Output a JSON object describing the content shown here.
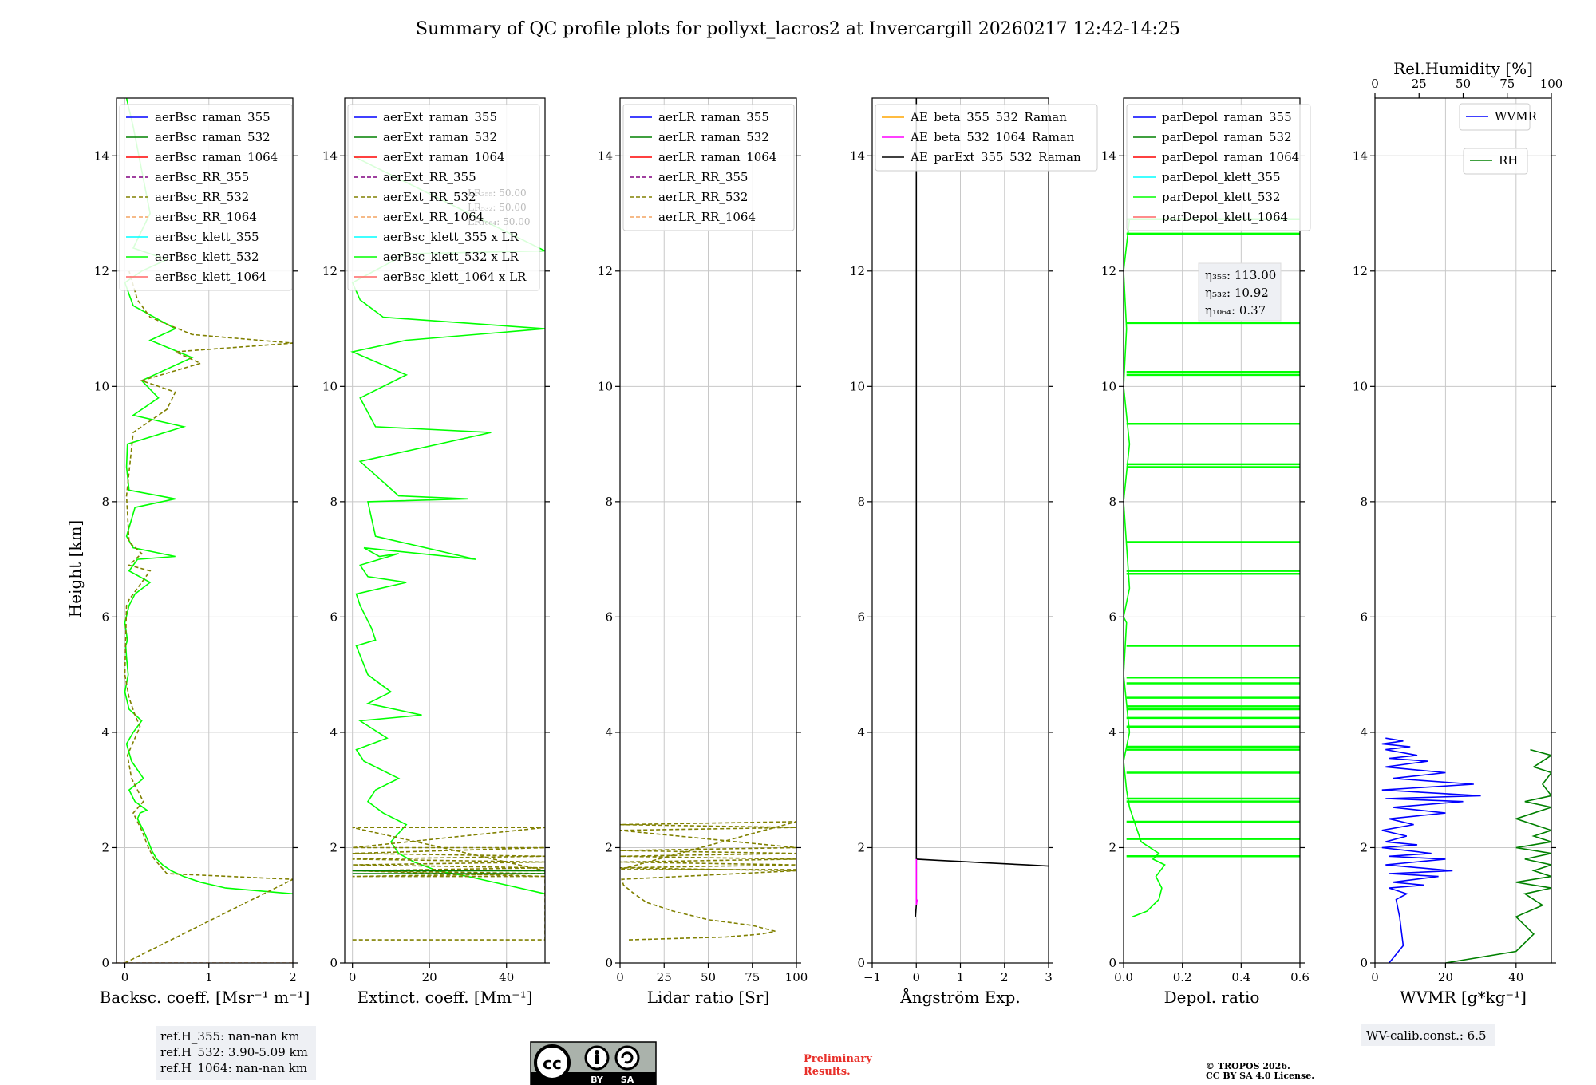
{
  "figure": {
    "title": "Summary of QC profile plots for pollyxt_lacros2 at Invercargill 20260217 12:42-14:25",
    "ylabel": "Height [km]",
    "ref_heights": [
      "ref.H_355: nan-nan km",
      "ref.H_532: 3.90-5.09 km",
      "ref.H_1064: nan-nan km"
    ],
    "wv_calib": "WV-calib.const.: 6.5",
    "preliminary": [
      "Preliminary",
      "Results."
    ],
    "copyright": [
      "© TROPOS 2026.",
      "CC BY SA 4.0 License."
    ],
    "license_badge": {
      "by": "BY",
      "sa": "SA",
      "cc": "cc"
    },
    "colors": {
      "raman355": "#0000ff",
      "raman532": "#008000",
      "raman1064": "#ff0000",
      "rr355": "#800080",
      "rr532": "#808000",
      "rr1064": "#f4a460",
      "klett355": "#00ffff",
      "klett532": "#00ff00",
      "klett1064": "#ff6666",
      "ae1": "#ffa500",
      "ae2": "#ff00ff",
      "ae3": "#000000",
      "prelim": "#e8302a"
    }
  },
  "chart_data": [
    {
      "type": "line",
      "name": "backscatter",
      "xlabel": "Backsc. coeff. [Msr⁻¹ m⁻¹]",
      "xlim": [
        -0.1,
        2
      ],
      "ylim": [
        0,
        15
      ],
      "xticks": [
        0,
        1,
        2
      ],
      "yticks": [
        0,
        2,
        4,
        6,
        8,
        10,
        12,
        14
      ],
      "legend": [
        "aerBsc_raman_355",
        "aerBsc_raman_532",
        "aerBsc_raman_1064",
        "aerBsc_RR_355",
        "aerBsc_RR_532",
        "aerBsc_RR_1064",
        "aerBsc_klett_355",
        "aerBsc_klett_532",
        "aerBsc_klett_1064"
      ],
      "series": [
        {
          "name": "aerBsc_klett_532",
          "color": "klett532",
          "x": [
            2.0,
            1.2,
            0.9,
            0.7,
            0.55,
            0.45,
            0.38,
            0.32,
            0.28,
            0.22,
            0.15,
            0.18,
            0.26,
            0.12,
            0.05,
            0.22,
            0.08,
            0.02,
            0.1,
            0.2,
            0.05,
            0.0,
            0.04,
            0.02,
            0.01,
            0.03,
            0.0,
            0.05,
            0.12,
            0.3,
            0.05,
            0.15,
            0.6,
            0.1,
            0.02,
            0.12,
            0.6,
            0.05,
            0.02,
            0.03,
            0.7,
            0.1,
            0.4,
            0.2,
            0.8,
            0.3,
            0.6,
            0.1,
            0.0,
            0.2,
            0.5,
            0.1,
            0.3,
            0.1,
            0.02
          ],
          "y": [
            1.2,
            1.3,
            1.4,
            1.5,
            1.6,
            1.7,
            1.8,
            1.95,
            2.1,
            2.3,
            2.5,
            2.6,
            2.65,
            2.8,
            3.0,
            3.2,
            3.5,
            3.8,
            4.0,
            4.2,
            4.4,
            4.7,
            5.0,
            5.3,
            5.5,
            5.6,
            5.9,
            6.2,
            6.4,
            6.6,
            6.8,
            7.0,
            7.05,
            7.2,
            7.4,
            7.9,
            8.05,
            8.2,
            8.6,
            9.0,
            9.3,
            9.5,
            9.8,
            10.1,
            10.5,
            10.8,
            11.0,
            11.4,
            11.8,
            12.0,
            12.2,
            12.4,
            13.0,
            14.5,
            15.0
          ]
        },
        {
          "name": "aerBsc_RR_532",
          "color": "rr532",
          "dashed": true,
          "x": [
            0.0,
            2.0,
            0.5,
            0.35,
            0.28,
            0.2,
            0.1,
            0.22,
            0.08,
            0.03,
            0.18,
            0.12,
            0.05,
            0.0,
            0.02,
            0.05,
            0.3,
            0.05,
            0.2,
            0.05,
            0.02,
            0.1,
            0.5,
            0.6,
            0.2,
            0.9,
            0.6,
            2.0,
            0.8,
            0.3,
            0.15,
            0.05
          ],
          "y": [
            0.0,
            1.45,
            1.55,
            1.8,
            2.0,
            2.3,
            2.6,
            2.8,
            3.2,
            3.6,
            4.1,
            4.3,
            4.6,
            5.0,
            6.2,
            6.3,
            6.8,
            6.9,
            7.1,
            7.3,
            8.1,
            9.2,
            9.6,
            9.9,
            10.1,
            10.4,
            10.6,
            10.75,
            10.9,
            11.2,
            11.5,
            12.0
          ]
        },
        {
          "name": "aerBsc_RR_1064",
          "color": "rr1064",
          "dashed": true,
          "x": [
            -0.1,
            2.0
          ],
          "y": [
            0.0,
            0.0
          ]
        }
      ]
    },
    {
      "type": "line",
      "name": "extinction",
      "xlabel": "Extinct. coeff. [Mm⁻¹]",
      "xlim": [
        -2,
        50
      ],
      "ylim": [
        0,
        15
      ],
      "xticks": [
        0,
        20,
        40
      ],
      "yticks": [
        0,
        2,
        4,
        6,
        8,
        10,
        12,
        14
      ],
      "legend": [
        "aerExt_raman_355",
        "aerExt_raman_532",
        "aerExt_raman_1064",
        "aerExt_RR_355",
        "aerExt_RR_532",
        "aerExt_RR_1064",
        "aerBsc_klett_355 x LR",
        "aerBsc_klett_532 x LR",
        "aerBsc_klett_1064 x LR"
      ],
      "lr_text": [
        "LR₃₅₅: 50.00",
        "LR₅₃₂: 50.00",
        "LR₁₀₆₄: 50.00"
      ],
      "series": [
        {
          "name": "aerBsc_klett_532 x LR",
          "color": "klett532",
          "x": [
            50,
            40,
            30,
            22,
            16,
            12,
            10,
            14,
            8,
            4,
            6,
            12,
            3,
            1,
            9,
            2,
            18,
            4,
            10,
            4,
            1,
            6,
            5,
            2,
            1,
            14,
            4,
            2,
            12,
            7,
            3,
            32,
            6,
            4,
            30,
            12,
            2,
            36,
            6,
            2,
            14,
            0,
            14,
            50,
            8,
            2,
            0,
            14,
            50,
            0
          ],
          "y": [
            1.2,
            1.35,
            1.5,
            1.6,
            1.75,
            1.9,
            2.1,
            2.4,
            2.6,
            2.8,
            3.0,
            3.2,
            3.5,
            3.7,
            3.9,
            4.2,
            4.3,
            4.5,
            4.7,
            5.0,
            5.5,
            5.6,
            5.8,
            6.2,
            6.4,
            6.6,
            6.7,
            6.9,
            7.1,
            7.05,
            7.2,
            7.0,
            7.4,
            8.0,
            8.05,
            8.1,
            8.7,
            9.2,
            9.3,
            9.8,
            10.2,
            10.6,
            10.8,
            11.0,
            11.2,
            11.5,
            11.8,
            12.3,
            12.35,
            14.0
          ]
        },
        {
          "name": "aerExt_RR_532",
          "color": "rr532",
          "dashed": true,
          "x": [
            0,
            50,
            50,
            0,
            50,
            0,
            50,
            0,
            50,
            0,
            50,
            0,
            50,
            0,
            50,
            0,
            50,
            0,
            50
          ],
          "y": [
            0.4,
            0.4,
            1.5,
            1.5,
            1.55,
            1.6,
            1.65,
            1.7,
            1.75,
            1.8,
            1.85,
            1.9,
            2.0,
            2.0,
            2.35,
            2.35,
            1.6,
            1.6,
            1.5
          ]
        },
        {
          "name": "aerExt_raman_532",
          "color": "raman532",
          "x": [
            0,
            50,
            50,
            0
          ],
          "y": [
            1.55,
            1.55,
            1.6,
            1.6
          ]
        }
      ]
    },
    {
      "type": "line",
      "name": "lidar_ratio",
      "xlabel": "Lidar ratio [Sr]",
      "xlim": [
        0,
        100
      ],
      "ylim": [
        0,
        15
      ],
      "xticks": [
        0,
        25,
        50,
        75,
        100
      ],
      "yticks": [
        0,
        2,
        4,
        6,
        8,
        10,
        12,
        14
      ],
      "legend": [
        "aerLR_raman_355",
        "aerLR_raman_532",
        "aerLR_raman_1064",
        "aerLR_RR_355",
        "aerLR_RR_532",
        "aerLR_RR_1064"
      ],
      "series": [
        {
          "name": "aerLR_RR_532",
          "color": "rr532",
          "dashed": true,
          "x": [
            5,
            60,
            80,
            88,
            75,
            50,
            30,
            15,
            8,
            2,
            1,
            100,
            0,
            100,
            0,
            100,
            0,
            100,
            0,
            100,
            0,
            100,
            0,
            100,
            0,
            100
          ],
          "y": [
            0.4,
            0.45,
            0.5,
            0.55,
            0.65,
            0.75,
            0.9,
            1.05,
            1.2,
            1.35,
            1.45,
            1.6,
            1.65,
            1.7,
            1.75,
            1.8,
            1.85,
            1.9,
            1.95,
            2.0,
            2.3,
            2.35,
            2.4,
            2.45,
            1.62,
            1.62
          ]
        }
      ]
    },
    {
      "type": "line",
      "name": "angstrom",
      "xlabel": "Ångström Exp.",
      "xlim": [
        -1,
        3
      ],
      "ylim": [
        0,
        15
      ],
      "xticks": [
        -1,
        0,
        1,
        2,
        3
      ],
      "yticks": [
        0,
        2,
        4,
        6,
        8,
        10,
        12,
        14
      ],
      "legend": [
        "AE_beta_355_532_Raman",
        "AE_beta_532_1064_Raman",
        "AE_parExt_355_532_Raman"
      ],
      "series": [
        {
          "name": "AE_parExt_355_532_Raman",
          "color": "ae3",
          "x": [
            -0.02,
            0.0,
            0.0,
            0.0,
            0.5,
            1.0,
            1.5,
            2.0,
            2.5,
            3.0
          ],
          "y": [
            0.8,
            1.0,
            1.8,
            1.8,
            1.78,
            1.76,
            1.74,
            1.72,
            1.7,
            1.68
          ]
        },
        {
          "name": "AE_parExt_355_532_Raman_top",
          "color": "ae3",
          "x": [
            0.0,
            0.0
          ],
          "y": [
            1.8,
            15.0
          ]
        },
        {
          "name": "AE_beta_532_1064_Raman",
          "color": "ae2",
          "x": [
            0.0,
            0.0,
            0.02
          ],
          "y": [
            1.8,
            1.0,
            1.1
          ]
        }
      ]
    },
    {
      "type": "line",
      "name": "depol",
      "xlabel": "Depol. ratio",
      "xlim": [
        0,
        0.6
      ],
      "ylim": [
        0,
        15
      ],
      "xticks": [
        0.0,
        0.2,
        0.4,
        0.6
      ],
      "yticks": [
        0,
        2,
        4,
        6,
        8,
        10,
        12,
        14
      ],
      "legend": [
        "parDepol_raman_355",
        "parDepol_raman_532",
        "parDepol_raman_1064",
        "parDepol_klett_355",
        "parDepol_klett_532",
        "parDepol_klett_1064"
      ],
      "eta": [
        "η₃₅₅: 113.00",
        "η₅₃₂: 10.92",
        "η₁₀₆₄: 0.37"
      ],
      "spikes_y": [
        1.85,
        2.15,
        2.45,
        2.8,
        2.85,
        3.3,
        3.7,
        3.75,
        4.1,
        4.25,
        4.4,
        4.45,
        4.6,
        4.85,
        4.95,
        5.5,
        6.75,
        6.8,
        7.3,
        8.6,
        8.65,
        9.35,
        10.2,
        10.25,
        11.1,
        12.65,
        12.9
      ],
      "series": [
        {
          "name": "parDepol_klett_532",
          "color": "klett532",
          "x": [
            0.03,
            0.08,
            0.12,
            0.13,
            0.11,
            0.14,
            0.1,
            0.12,
            0.06,
            0.04,
            0.02,
            0.01,
            0.0,
            0.02,
            0.0,
            0.01,
            0.0,
            0.02,
            0.0,
            0.02,
            0.0,
            0.01,
            0.0,
            0.02
          ],
          "y": [
            0.8,
            0.9,
            1.1,
            1.3,
            1.5,
            1.7,
            1.8,
            1.9,
            2.1,
            2.4,
            2.7,
            3.0,
            3.5,
            4.0,
            5.0,
            5.9,
            6.0,
            6.5,
            8.0,
            9.0,
            10.0,
            11.0,
            12.0,
            12.9
          ]
        }
      ]
    },
    {
      "type": "line",
      "name": "water_vapor",
      "xlabel": "WVMR [g*kg⁻¹]",
      "top_xlabel": "Rel.Humidity [%]",
      "xlim": [
        0,
        50
      ],
      "ylim": [
        0,
        15
      ],
      "xticks": [
        0,
        20,
        40
      ],
      "top_xticks": [
        0,
        25,
        50,
        75,
        100
      ],
      "yticks": [
        0,
        2,
        4,
        6,
        8,
        10,
        12,
        14
      ],
      "legend": [
        "WVMR",
        "RH"
      ],
      "wvmr": {
        "x": [
          4,
          8,
          7,
          6,
          9,
          4,
          14,
          5,
          18,
          4,
          22,
          3,
          20,
          4,
          16,
          2,
          12,
          3,
          9,
          2,
          11,
          4,
          20,
          5,
          25,
          3,
          30,
          2,
          28,
          5,
          20,
          3,
          15,
          4,
          12,
          3,
          10,
          2,
          8,
          3
        ],
        "y": [
          0.0,
          0.3,
          0.8,
          1.1,
          1.2,
          1.3,
          1.35,
          1.4,
          1.5,
          1.55,
          1.6,
          1.7,
          1.8,
          1.85,
          1.9,
          2.0,
          2.05,
          2.1,
          2.2,
          2.3,
          2.4,
          2.5,
          2.6,
          2.7,
          2.8,
          2.85,
          2.9,
          3.0,
          3.1,
          3.2,
          3.3,
          3.4,
          3.5,
          3.55,
          3.6,
          3.7,
          3.75,
          3.8,
          3.85,
          3.9
        ]
      },
      "rh": {
        "x": [
          40,
          80,
          90,
          80,
          95,
          85,
          100,
          80,
          100,
          90,
          100,
          85,
          100,
          80,
          100,
          90,
          100,
          80,
          100,
          85,
          100,
          95,
          100,
          90,
          100,
          88
        ],
        "y": [
          0.0,
          0.2,
          0.5,
          0.8,
          1.0,
          1.2,
          1.3,
          1.4,
          1.5,
          1.6,
          1.7,
          1.8,
          1.9,
          2.0,
          2.1,
          2.2,
          2.3,
          2.5,
          2.7,
          2.8,
          2.9,
          3.1,
          3.3,
          3.4,
          3.6,
          3.7
        ]
      }
    }
  ]
}
